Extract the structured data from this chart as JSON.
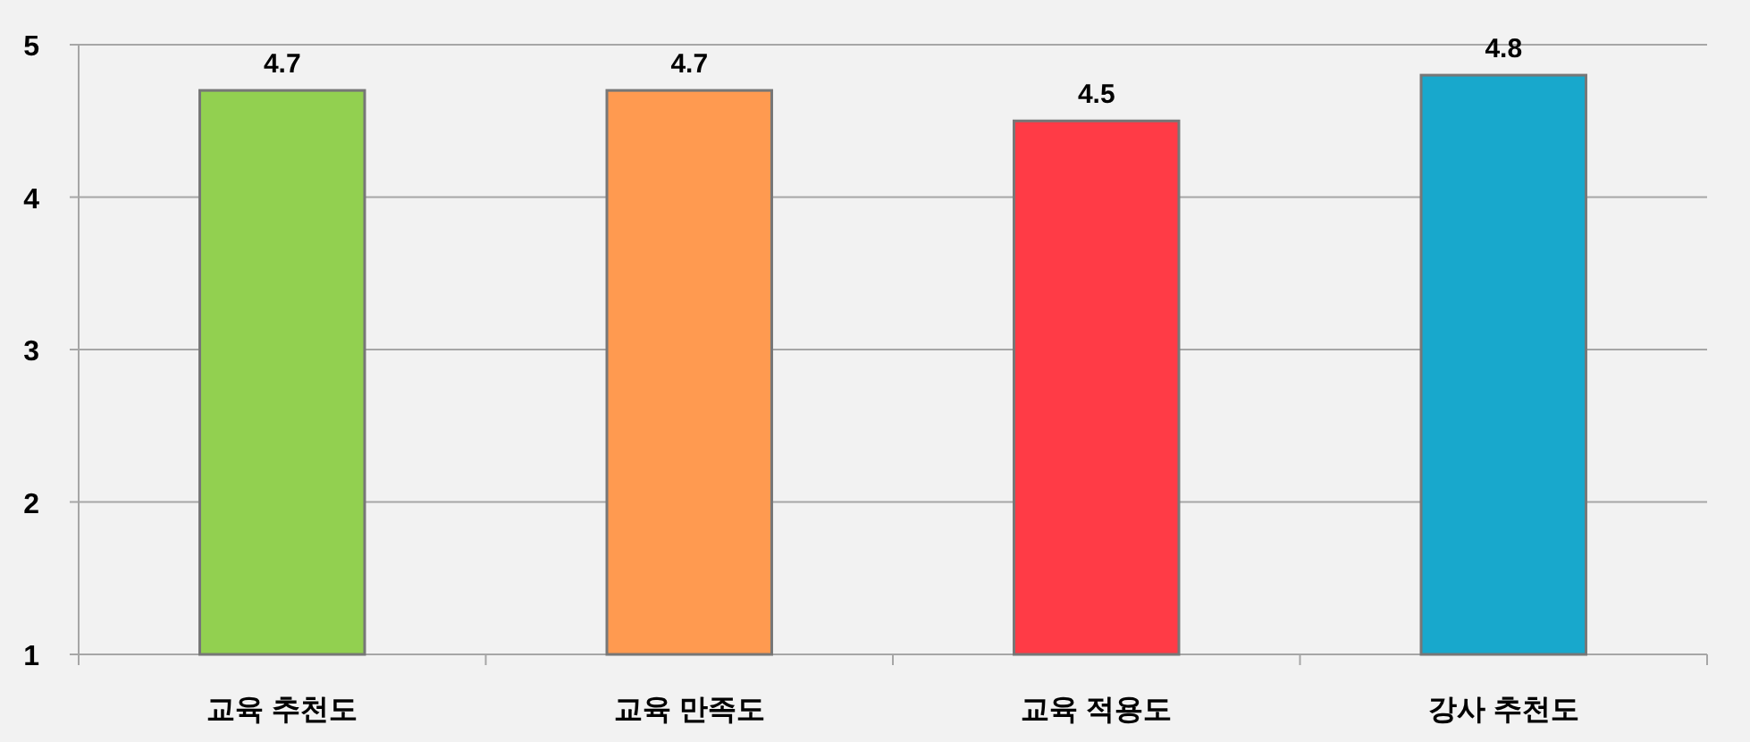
{
  "chart_data": {
    "type": "bar",
    "categories": [
      "교육 추천도",
      "교육 만족도",
      "교육 적용도",
      "강사 추천도"
    ],
    "values": [
      4.7,
      4.7,
      4.5,
      4.8
    ],
    "colors": [
      "#92d050",
      "#ff9a50",
      "#ff3b46",
      "#18a8cc"
    ],
    "ylim": [
      1,
      5
    ],
    "yticks": [
      1,
      2,
      3,
      4,
      5
    ],
    "grid": "y",
    "data_labels": true
  }
}
